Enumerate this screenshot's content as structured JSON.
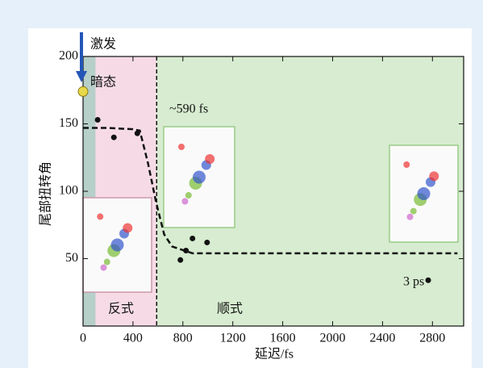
{
  "chart_data": {
    "type": "scatter",
    "xlabel": "延迟/fs",
    "ylabel": "尾部扭转角",
    "xlim": [
      0,
      3050
    ],
    "ylim": [
      0,
      200
    ],
    "xticks": [
      0,
      400,
      800,
      1200,
      1600,
      2000,
      2400,
      2800
    ],
    "yticks": [
      50,
      100,
      150,
      200
    ],
    "regions": [
      {
        "from": 0,
        "to": 100,
        "color": "#b7cfc9"
      },
      {
        "from": 100,
        "to": 590,
        "color": "#f6dbe6"
      },
      {
        "from": 590,
        "to": 3050,
        "color": "#d7ecd0"
      }
    ],
    "vline": 590,
    "series": [
      {
        "style": "points",
        "color": "#111111",
        "x": [
          117,
          247,
          435,
          780,
          825,
          877,
          994,
          2766
        ],
        "values": [
          153,
          140,
          143,
          49,
          56,
          65,
          62,
          34
        ]
      },
      {
        "style": "dashed-line",
        "color": "#111111",
        "x": [
          0,
          200,
          400,
          455,
          520,
          585,
          650,
          714,
          877,
          1500,
          2000,
          2500,
          3000
        ],
        "values": [
          147,
          147,
          146,
          145,
          121,
          92,
          68,
          59,
          54,
          54,
          54,
          54,
          54
        ]
      },
      {
        "style": "points",
        "color": "#e8d84a",
        "x": [
          0
        ],
        "values": [
          174
        ]
      }
    ],
    "annotations": [
      "激发",
      "暗态",
      "~590 fs",
      "3 ps",
      "反式",
      "顺式"
    ]
  }
}
